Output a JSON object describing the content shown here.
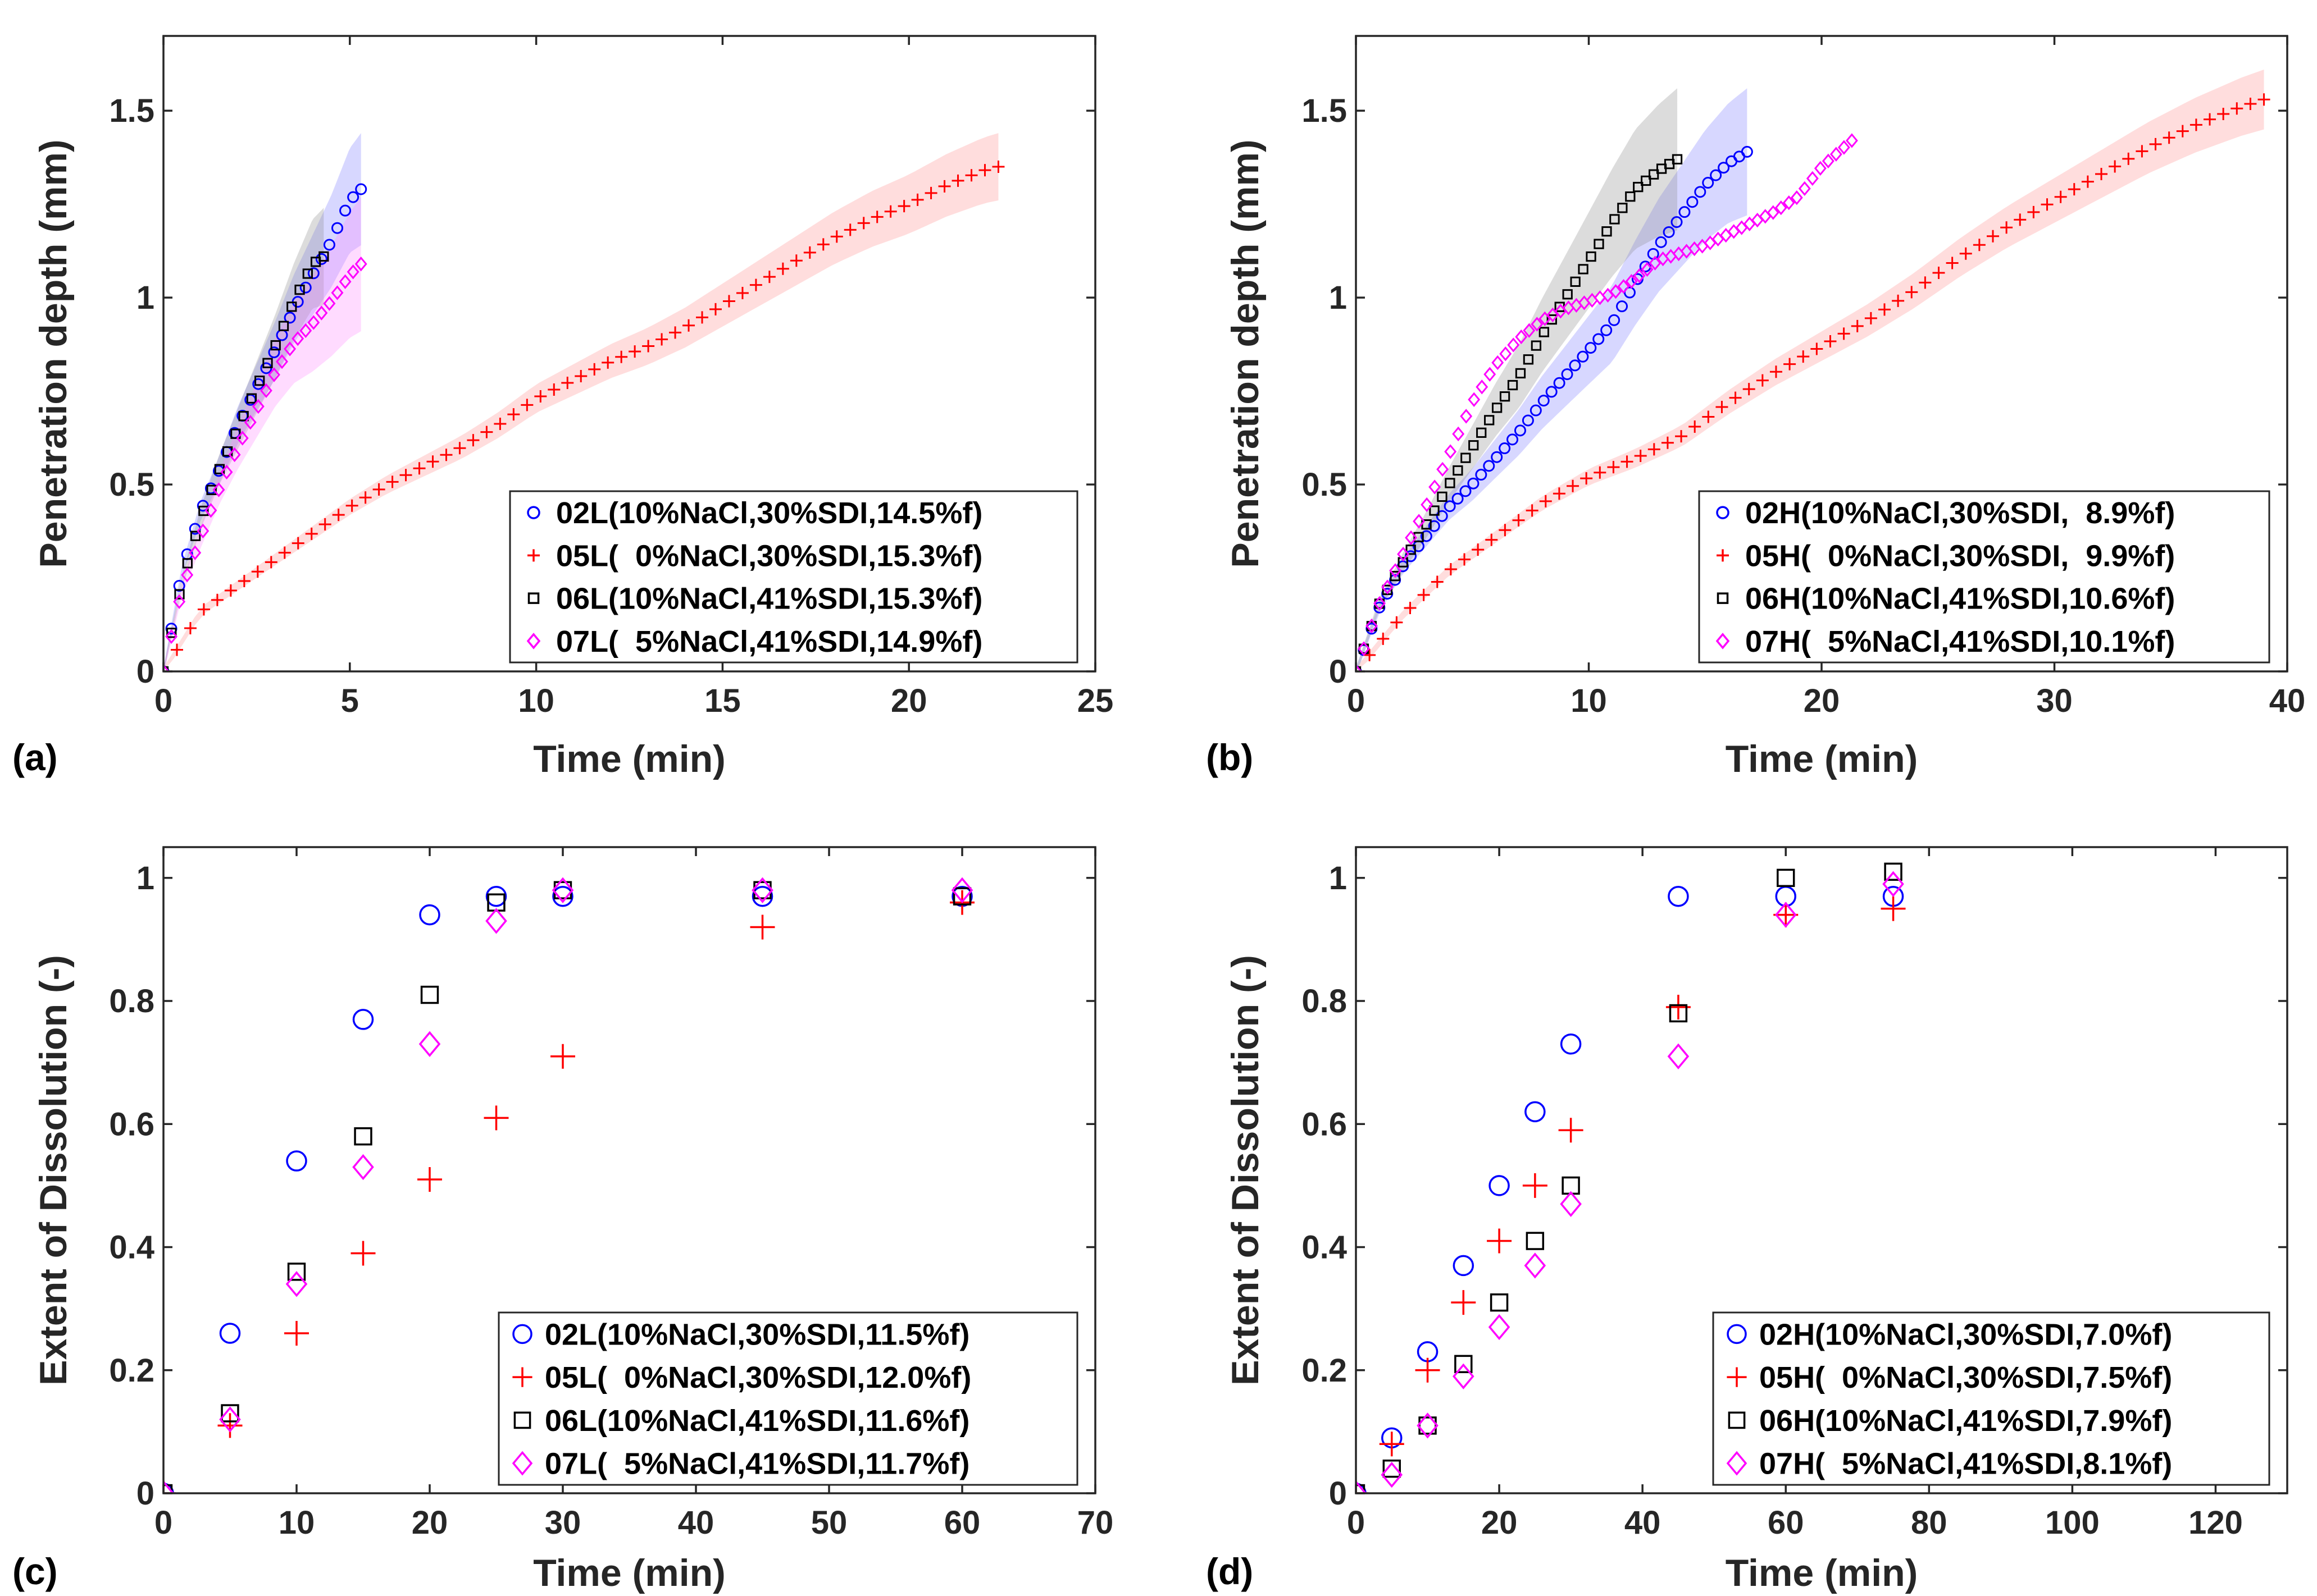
{
  "chart_data": [
    {
      "panel_label": "(a)",
      "type": "scatter",
      "xlabel": "Time (min)",
      "ylabel": "Penetration depth (mm)",
      "xlim": [
        0,
        25
      ],
      "ylim": [
        0,
        1.7
      ],
      "xticks": [
        0,
        5,
        10,
        15,
        20,
        25
      ],
      "yticks": [
        0,
        0.5,
        1,
        1.5
      ],
      "xtick_labels": [
        "0",
        "5",
        "10",
        "15",
        "20",
        "25"
      ],
      "ytick_labels": [
        "0",
        "0.5",
        "1",
        "1.5"
      ],
      "legend_position": "bottom-right",
      "series": [
        {
          "name": "02L(10%NaCl,30%SDI,14.5%f)",
          "marker": "circle",
          "color": "#0000ff",
          "band_color": "#7b7bff",
          "band_width": 0.14,
          "band_scale": 1.0,
          "x": [
            0,
            0.5,
            1,
            1.5,
            2,
            2.5,
            3,
            3.5,
            4,
            4.5,
            5,
            5.3
          ],
          "y": [
            0,
            0.27,
            0.43,
            0.54,
            0.66,
            0.76,
            0.86,
            0.97,
            1.06,
            1.15,
            1.26,
            1.29
          ]
        },
        {
          "name": "05L(  0%NaCl,30%SDI,15.3%f)",
          "marker": "plus",
          "color": "#ff0000",
          "band_color": "#ff8f8f",
          "band_width": 0.08,
          "band_scale": 1.0,
          "x": [
            0,
            1,
            2,
            3,
            4,
            5,
            6,
            7,
            8,
            9,
            10,
            11,
            12,
            13,
            14,
            15,
            16,
            17,
            18,
            19,
            20,
            21,
            22,
            22.4
          ],
          "y": [
            0,
            0.16,
            0.23,
            0.3,
            0.37,
            0.44,
            0.5,
            0.55,
            0.6,
            0.66,
            0.73,
            0.78,
            0.83,
            0.87,
            0.92,
            0.98,
            1.04,
            1.1,
            1.16,
            1.21,
            1.25,
            1.3,
            1.34,
            1.35
          ]
        },
        {
          "name": "06L(10%NaCl,41%SDI,15.3%f)",
          "marker": "square",
          "color": "#000000",
          "band_color": "#8a8a8a",
          "band_width": 0.12,
          "band_scale": 1.0,
          "x": [
            0,
            0.5,
            1,
            1.5,
            2,
            2.5,
            3,
            3.5,
            4,
            4.3
          ],
          "y": [
            0,
            0.24,
            0.41,
            0.54,
            0.65,
            0.76,
            0.87,
            0.99,
            1.09,
            1.11
          ]
        },
        {
          "name": "07L(  5%NaCl,41%SDI,14.9%f)",
          "marker": "diamond",
          "color": "#ff00ff",
          "band_color": "#ff88ff",
          "band_width": 0.17,
          "band_scale": 1.0,
          "x": [
            0,
            0.5,
            1,
            1.5,
            2,
            2.5,
            3,
            3.5,
            4,
            4.5,
            5,
            5.3
          ],
          "y": [
            0,
            0.22,
            0.36,
            0.49,
            0.6,
            0.7,
            0.8,
            0.88,
            0.93,
            0.99,
            1.06,
            1.09
          ]
        }
      ]
    },
    {
      "panel_label": "(b)",
      "type": "scatter",
      "xlabel": "Time (min)",
      "ylabel": "Penetration depth (mm)",
      "xlim": [
        0,
        40
      ],
      "ylim": [
        0,
        1.7
      ],
      "xticks": [
        0,
        10,
        20,
        30,
        40
      ],
      "yticks": [
        0,
        0.5,
        1,
        1.5
      ],
      "xtick_labels": [
        "0",
        "10",
        "20",
        "30",
        "40"
      ],
      "ytick_labels": [
        "0",
        "0.5",
        "1",
        "1.5"
      ],
      "legend_position": "bottom-right",
      "series": [
        {
          "name": "02H(10%NaCl,30%SDI,  8.9%f)",
          "marker": "circle",
          "color": "#0000ff",
          "band_color": "#7b7bff",
          "band_width": 0.1,
          "band_scale": 1.6,
          "x": [
            0,
            1,
            2,
            3,
            4,
            5,
            6,
            7,
            8,
            9,
            10,
            11,
            12,
            13,
            14,
            15,
            16,
            16.8
          ],
          "y": [
            0,
            0.17,
            0.28,
            0.36,
            0.44,
            0.5,
            0.57,
            0.64,
            0.72,
            0.79,
            0.86,
            0.93,
            1.04,
            1.14,
            1.22,
            1.3,
            1.36,
            1.39
          ]
        },
        {
          "name": "05H(  0%NaCl,30%SDI,  9.9%f)",
          "marker": "plus",
          "color": "#ff0000",
          "band_color": "#ff8f8f",
          "band_width": 0.07,
          "band_scale": 1.0,
          "x": [
            0,
            2,
            4,
            6,
            8,
            10,
            12,
            14,
            16,
            18,
            20,
            22,
            24,
            26,
            28,
            30,
            32,
            34,
            36,
            38,
            39
          ],
          "y": [
            0,
            0.15,
            0.27,
            0.36,
            0.45,
            0.52,
            0.57,
            0.63,
            0.72,
            0.8,
            0.87,
            0.94,
            1.02,
            1.11,
            1.19,
            1.26,
            1.33,
            1.4,
            1.46,
            1.51,
            1.53
          ]
        },
        {
          "name": "06H(10%NaCl,41%SDI,10.6%f)",
          "marker": "square",
          "color": "#000000",
          "band_color": "#8a8a8a",
          "band_width": 0.1,
          "band_scale": 1.8,
          "x": [
            0,
            1,
            2,
            3,
            4,
            5,
            6,
            7,
            8,
            9,
            10,
            11,
            12,
            13,
            13.8
          ],
          "y": [
            0,
            0.18,
            0.29,
            0.39,
            0.5,
            0.6,
            0.7,
            0.79,
            0.9,
            1.0,
            1.1,
            1.2,
            1.29,
            1.34,
            1.37
          ]
        },
        {
          "name": "07H(  5%NaCl,41%SDI,10.1%f)",
          "marker": "diamond",
          "color": "#ff00ff",
          "band_color": "#ff88ff",
          "band_width": 0,
          "band_scale": 0,
          "x": [
            0,
            1,
            2,
            3,
            4,
            5,
            6,
            7,
            8,
            9,
            10,
            11,
            12,
            13,
            14,
            15,
            16,
            17,
            18,
            19,
            20,
            21.3
          ],
          "y": [
            0,
            0.18,
            0.31,
            0.44,
            0.58,
            0.72,
            0.82,
            0.89,
            0.94,
            0.97,
            0.99,
            1.01,
            1.05,
            1.1,
            1.12,
            1.14,
            1.17,
            1.2,
            1.23,
            1.27,
            1.35,
            1.42
          ]
        }
      ]
    },
    {
      "panel_label": "(c)",
      "type": "scatter",
      "xlabel": "Time (min)",
      "ylabel": "Extent of Dissolution (-)",
      "xlim": [
        0,
        70
      ],
      "ylim": [
        0,
        1.05
      ],
      "xticks": [
        0,
        10,
        20,
        30,
        40,
        50,
        60,
        70
      ],
      "yticks": [
        0,
        0.2,
        0.4,
        0.6,
        0.8,
        1
      ],
      "xtick_labels": [
        "0",
        "10",
        "20",
        "30",
        "40",
        "50",
        "60",
        "70"
      ],
      "ytick_labels": [
        "0",
        "0.2",
        "0.4",
        "0.6",
        "0.8",
        "1"
      ],
      "legend_position": "bottom-right",
      "series": [
        {
          "name": "02L(10%NaCl,30%SDI,11.5%f)",
          "marker": "circle",
          "color": "#0000ff",
          "x": [
            0,
            5,
            10,
            15,
            20,
            25,
            30,
            45,
            60
          ],
          "y": [
            0,
            0.26,
            0.54,
            0.77,
            0.94,
            0.97,
            0.97,
            0.97,
            0.97
          ]
        },
        {
          "name": "05L(  0%NaCl,30%SDI,12.0%f)",
          "marker": "plus",
          "color": "#ff0000",
          "x": [
            0,
            5,
            10,
            15,
            20,
            25,
            30,
            45,
            60
          ],
          "y": [
            0,
            0.11,
            0.26,
            0.39,
            0.51,
            0.61,
            0.71,
            0.92,
            0.96
          ]
        },
        {
          "name": "06L(10%NaCl,41%SDI,11.6%f)",
          "marker": "square",
          "color": "#000000",
          "x": [
            0,
            5,
            10,
            15,
            20,
            25,
            30,
            45,
            60
          ],
          "y": [
            0,
            0.13,
            0.36,
            0.58,
            0.81,
            0.96,
            0.98,
            0.98,
            0.97
          ]
        },
        {
          "name": "07L(  5%NaCl,41%SDI,11.7%f)",
          "marker": "diamond",
          "color": "#ff00ff",
          "x": [
            0,
            5,
            10,
            15,
            20,
            25,
            30,
            45,
            60
          ],
          "y": [
            0,
            0.12,
            0.34,
            0.53,
            0.73,
            0.93,
            0.98,
            0.98,
            0.98
          ]
        }
      ]
    },
    {
      "panel_label": "(d)",
      "type": "scatter",
      "xlabel": "Time (min)",
      "ylabel": "Extent of Dissolution (-)",
      "xlim": [
        0,
        130
      ],
      "ylim": [
        0,
        1.05
      ],
      "xticks": [
        0,
        20,
        40,
        60,
        80,
        100,
        120
      ],
      "yticks": [
        0,
        0.2,
        0.4,
        0.6,
        0.8,
        1
      ],
      "xtick_labels": [
        "0",
        "20",
        "40",
        "60",
        "80",
        "100",
        "120"
      ],
      "ytick_labels": [
        "0",
        "0.2",
        "0.4",
        "0.6",
        "0.8",
        "1"
      ],
      "legend_position": "bottom-right",
      "series": [
        {
          "name": "02H(10%NaCl,30%SDI,7.0%f)",
          "marker": "circle",
          "color": "#0000ff",
          "x": [
            0,
            5,
            10,
            15,
            20,
            25,
            30,
            45,
            60,
            75
          ],
          "y": [
            0,
            0.09,
            0.23,
            0.37,
            0.5,
            0.62,
            0.73,
            0.97,
            0.97,
            0.97
          ]
        },
        {
          "name": "05H(  0%NaCl,30%SDI,7.5%f)",
          "marker": "plus",
          "color": "#ff0000",
          "x": [
            0,
            5,
            10,
            15,
            20,
            25,
            30,
            45,
            60,
            75
          ],
          "y": [
            0,
            0.08,
            0.2,
            0.31,
            0.41,
            0.5,
            0.59,
            0.79,
            0.94,
            0.95
          ]
        },
        {
          "name": "06H(10%NaCl,41%SDI,7.9%f)",
          "marker": "square",
          "color": "#000000",
          "x": [
            0,
            5,
            10,
            15,
            20,
            25,
            30,
            45,
            60,
            75
          ],
          "y": [
            0,
            0.04,
            0.11,
            0.21,
            0.31,
            0.41,
            0.5,
            0.78,
            1.0,
            1.01
          ]
        },
        {
          "name": "07H(  5%NaCl,41%SDI,8.1%f)",
          "marker": "diamond",
          "color": "#ff00ff",
          "x": [
            0,
            5,
            10,
            15,
            20,
            25,
            30,
            45,
            60,
            75
          ],
          "y": [
            0,
            0.03,
            0.11,
            0.19,
            0.27,
            0.37,
            0.47,
            0.71,
            0.94,
            0.99
          ]
        }
      ]
    }
  ]
}
